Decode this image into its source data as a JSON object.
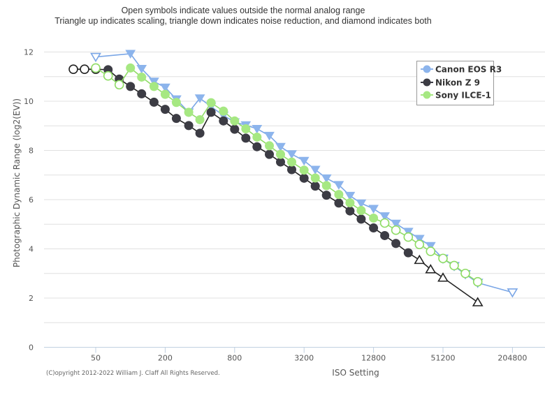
{
  "chart_data": {
    "type": "line",
    "title": "",
    "subtitle_lines": [
      "Open symbols indicate values outside the normal analog range",
      "Triangle up indicates scaling, triangle down indicates noise reduction, and diamond indicates both"
    ],
    "xlabel": "ISO Setting",
    "ylabel": "Photographic Dynamic Range (log2(EV))",
    "x_scale": "log2",
    "xlim": [
      25,
      409600
    ],
    "ylim": [
      0,
      12
    ],
    "x_ticks": [
      50,
      200,
      800,
      3200,
      12800,
      51200,
      204800
    ],
    "x_tick_labels": [
      "50",
      "200",
      "800",
      "3200",
      "12800",
      "51200",
      "204800"
    ],
    "y_ticks": [
      0,
      2,
      4,
      6,
      8,
      10,
      12
    ],
    "y_tick_labels": [
      "0",
      "2",
      "4",
      "6",
      "8",
      "10",
      "12"
    ],
    "grid": true,
    "legend_position": "top-right",
    "credit": "(C)opyright 2012-2022 William J. Claff All Rights Reserved.",
    "series": [
      {
        "name": "Canon EOS R3",
        "color": "#8cb4ec",
        "line_color": "#7aa6e6",
        "points": [
          {
            "iso": 50,
            "value": 11.8,
            "symbol": "triangle-down",
            "open": true
          },
          {
            "iso": 100,
            "value": 11.93,
            "symbol": "triangle-down",
            "open": false
          },
          {
            "iso": 125,
            "value": 11.32,
            "symbol": "triangle-down",
            "open": false
          },
          {
            "iso": 160,
            "value": 10.8,
            "symbol": "triangle-down",
            "open": false
          },
          {
            "iso": 200,
            "value": 10.56,
            "symbol": "triangle-down",
            "open": false
          },
          {
            "iso": 250,
            "value": 10.08,
            "symbol": "triangle-down",
            "open": false
          },
          {
            "iso": 320,
            "value": 9.55,
            "symbol": "triangle-down",
            "open": false
          },
          {
            "iso": 400,
            "value": 10.12,
            "symbol": "triangle-down",
            "open": false
          },
          {
            "iso": 500,
            "value": 9.78,
            "symbol": "triangle-down",
            "open": false
          },
          {
            "iso": 640,
            "value": 9.42,
            "symbol": "triangle-down",
            "open": false
          },
          {
            "iso": 800,
            "value": 9.15,
            "symbol": "triangle-down",
            "open": false
          },
          {
            "iso": 1000,
            "value": 9.03,
            "symbol": "triangle-down",
            "open": false
          },
          {
            "iso": 1250,
            "value": 8.88,
            "symbol": "triangle-down",
            "open": false
          },
          {
            "iso": 1600,
            "value": 8.6,
            "symbol": "triangle-down",
            "open": false
          },
          {
            "iso": 2000,
            "value": 8.15,
            "symbol": "triangle-down",
            "open": false
          },
          {
            "iso": 2500,
            "value": 7.85,
            "symbol": "triangle-down",
            "open": false
          },
          {
            "iso": 3200,
            "value": 7.58,
            "symbol": "triangle-down",
            "open": false
          },
          {
            "iso": 4000,
            "value": 7.22,
            "symbol": "triangle-down",
            "open": false
          },
          {
            "iso": 5000,
            "value": 6.87,
            "symbol": "triangle-down",
            "open": false
          },
          {
            "iso": 6400,
            "value": 6.6,
            "symbol": "triangle-down",
            "open": false
          },
          {
            "iso": 8000,
            "value": 6.16,
            "symbol": "triangle-down",
            "open": false
          },
          {
            "iso": 10000,
            "value": 5.85,
            "symbol": "triangle-down",
            "open": false
          },
          {
            "iso": 12800,
            "value": 5.63,
            "symbol": "triangle-down",
            "open": false
          },
          {
            "iso": 16000,
            "value": 5.33,
            "symbol": "triangle-down",
            "open": false
          },
          {
            "iso": 20000,
            "value": 5.03,
            "symbol": "triangle-down",
            "open": false
          },
          {
            "iso": 25600,
            "value": 4.7,
            "symbol": "triangle-down",
            "open": false
          },
          {
            "iso": 32000,
            "value": 4.41,
            "symbol": "triangle-down",
            "open": false
          },
          {
            "iso": 40000,
            "value": 4.12,
            "symbol": "triangle-down",
            "open": false
          },
          {
            "iso": 51200,
            "value": 3.6,
            "symbol": "triangle-down",
            "open": true
          },
          {
            "iso": 64000,
            "value": 3.3,
            "symbol": "triangle-down",
            "open": true
          },
          {
            "iso": 80000,
            "value": 2.97,
            "symbol": "triangle-down",
            "open": true
          },
          {
            "iso": 102400,
            "value": 2.62,
            "symbol": "triangle-down",
            "open": true
          },
          {
            "iso": 204800,
            "value": 2.23,
            "symbol": "triangle-down",
            "open": true
          }
        ]
      },
      {
        "name": "Nikon Z 9",
        "color": "#3c3c44",
        "line_color": "#222222",
        "points": [
          {
            "iso": 32,
            "value": 11.3,
            "symbol": "circle",
            "open": true
          },
          {
            "iso": 40,
            "value": 11.3,
            "symbol": "circle",
            "open": true
          },
          {
            "iso": 50,
            "value": 11.3,
            "symbol": "circle",
            "open": true
          },
          {
            "iso": 64,
            "value": 11.28,
            "symbol": "circle",
            "open": false
          },
          {
            "iso": 80,
            "value": 10.9,
            "symbol": "circle",
            "open": false
          },
          {
            "iso": 100,
            "value": 10.6,
            "symbol": "circle",
            "open": false
          },
          {
            "iso": 125,
            "value": 10.3,
            "symbol": "circle",
            "open": false
          },
          {
            "iso": 160,
            "value": 9.96,
            "symbol": "circle",
            "open": false
          },
          {
            "iso": 200,
            "value": 9.67,
            "symbol": "circle",
            "open": false
          },
          {
            "iso": 250,
            "value": 9.3,
            "symbol": "circle",
            "open": false
          },
          {
            "iso": 320,
            "value": 9.01,
            "symbol": "circle",
            "open": false
          },
          {
            "iso": 400,
            "value": 8.7,
            "symbol": "circle",
            "open": false
          },
          {
            "iso": 500,
            "value": 9.55,
            "symbol": "circle",
            "open": false
          },
          {
            "iso": 640,
            "value": 9.2,
            "symbol": "circle",
            "open": false
          },
          {
            "iso": 800,
            "value": 8.86,
            "symbol": "circle",
            "open": false
          },
          {
            "iso": 1000,
            "value": 8.5,
            "symbol": "circle",
            "open": false
          },
          {
            "iso": 1250,
            "value": 8.15,
            "symbol": "circle",
            "open": false
          },
          {
            "iso": 1600,
            "value": 7.84,
            "symbol": "circle",
            "open": false
          },
          {
            "iso": 2000,
            "value": 7.53,
            "symbol": "circle",
            "open": false
          },
          {
            "iso": 2500,
            "value": 7.22,
            "symbol": "circle",
            "open": false
          },
          {
            "iso": 3200,
            "value": 6.87,
            "symbol": "circle",
            "open": false
          },
          {
            "iso": 4000,
            "value": 6.55,
            "symbol": "circle",
            "open": false
          },
          {
            "iso": 5000,
            "value": 6.18,
            "symbol": "circle",
            "open": false
          },
          {
            "iso": 6400,
            "value": 5.86,
            "symbol": "circle",
            "open": false
          },
          {
            "iso": 8000,
            "value": 5.54,
            "symbol": "circle",
            "open": false
          },
          {
            "iso": 10000,
            "value": 5.21,
            "symbol": "circle",
            "open": false
          },
          {
            "iso": 12800,
            "value": 4.85,
            "symbol": "circle",
            "open": false
          },
          {
            "iso": 16000,
            "value": 4.54,
            "symbol": "circle",
            "open": false
          },
          {
            "iso": 20000,
            "value": 4.22,
            "symbol": "circle",
            "open": false
          },
          {
            "iso": 25600,
            "value": 3.84,
            "symbol": "circle",
            "open": false
          },
          {
            "iso": 32000,
            "value": 3.55,
            "symbol": "triangle-up",
            "open": true
          },
          {
            "iso": 40000,
            "value": 3.17,
            "symbol": "triangle-up",
            "open": true
          },
          {
            "iso": 51200,
            "value": 2.83,
            "symbol": "triangle-up",
            "open": true
          },
          {
            "iso": 102400,
            "value": 1.83,
            "symbol": "triangle-up",
            "open": true
          }
        ]
      },
      {
        "name": "Sony ILCE-1",
        "color": "#a6e882",
        "line_color": "#8fdc66",
        "points": [
          {
            "iso": 50,
            "value": 11.35,
            "symbol": "circle",
            "open": true
          },
          {
            "iso": 64,
            "value": 11.03,
            "symbol": "circle",
            "open": true
          },
          {
            "iso": 80,
            "value": 10.67,
            "symbol": "circle",
            "open": true
          },
          {
            "iso": 100,
            "value": 11.35,
            "symbol": "circle",
            "open": false
          },
          {
            "iso": 125,
            "value": 10.98,
            "symbol": "circle",
            "open": false
          },
          {
            "iso": 160,
            "value": 10.6,
            "symbol": "circle",
            "open": false
          },
          {
            "iso": 200,
            "value": 10.28,
            "symbol": "circle",
            "open": false
          },
          {
            "iso": 250,
            "value": 9.95,
            "symbol": "circle",
            "open": false
          },
          {
            "iso": 320,
            "value": 9.55,
            "symbol": "circle",
            "open": false
          },
          {
            "iso": 400,
            "value": 9.25,
            "symbol": "circle",
            "open": false
          },
          {
            "iso": 500,
            "value": 9.94,
            "symbol": "circle",
            "open": false
          },
          {
            "iso": 640,
            "value": 9.6,
            "symbol": "circle",
            "open": false
          },
          {
            "iso": 800,
            "value": 9.2,
            "symbol": "circle",
            "open": false
          },
          {
            "iso": 1000,
            "value": 8.88,
            "symbol": "circle",
            "open": false
          },
          {
            "iso": 1250,
            "value": 8.54,
            "symbol": "circle",
            "open": false
          },
          {
            "iso": 1600,
            "value": 8.19,
            "symbol": "circle",
            "open": false
          },
          {
            "iso": 2000,
            "value": 7.84,
            "symbol": "circle",
            "open": false
          },
          {
            "iso": 2500,
            "value": 7.53,
            "symbol": "circle",
            "open": false
          },
          {
            "iso": 3200,
            "value": 7.2,
            "symbol": "circle",
            "open": false
          },
          {
            "iso": 4000,
            "value": 6.88,
            "symbol": "circle",
            "open": false
          },
          {
            "iso": 5000,
            "value": 6.57,
            "symbol": "circle",
            "open": false
          },
          {
            "iso": 6400,
            "value": 6.21,
            "symbol": "circle",
            "open": false
          },
          {
            "iso": 8000,
            "value": 5.87,
            "symbol": "circle",
            "open": false
          },
          {
            "iso": 10000,
            "value": 5.56,
            "symbol": "circle",
            "open": false
          },
          {
            "iso": 12800,
            "value": 5.25,
            "symbol": "circle",
            "open": false
          },
          {
            "iso": 16000,
            "value": 5.05,
            "symbol": "circle",
            "open": true
          },
          {
            "iso": 20000,
            "value": 4.76,
            "symbol": "circle",
            "open": true
          },
          {
            "iso": 25600,
            "value": 4.48,
            "symbol": "circle",
            "open": true
          },
          {
            "iso": 32000,
            "value": 4.18,
            "symbol": "circle",
            "open": true
          },
          {
            "iso": 40000,
            "value": 3.9,
            "symbol": "circle",
            "open": true
          },
          {
            "iso": 51200,
            "value": 3.61,
            "symbol": "circle",
            "open": true
          },
          {
            "iso": 64000,
            "value": 3.32,
            "symbol": "circle",
            "open": true
          },
          {
            "iso": 80000,
            "value": 3.0,
            "symbol": "circle",
            "open": true
          },
          {
            "iso": 102400,
            "value": 2.66,
            "symbol": "circle",
            "open": true
          }
        ]
      }
    ]
  },
  "style": {
    "grid_color": "#e0e0e0",
    "axis_line_color": "#c0d0e0",
    "legend_border_color": "#999999"
  }
}
